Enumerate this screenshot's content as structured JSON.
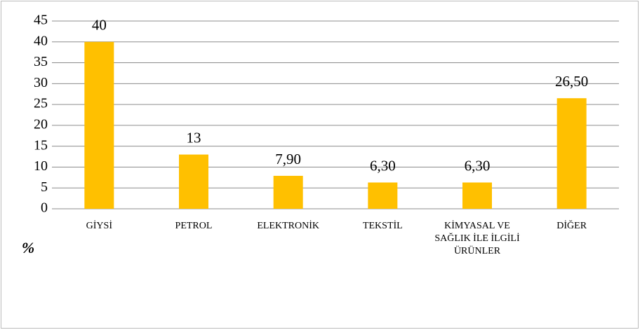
{
  "chart_data": {
    "type": "bar",
    "y_label": "%",
    "categories": [
      "GİYSİ",
      "PETROL",
      "ELEKTRONİK",
      "TEKSTİL",
      "KİMYASAL VE SAĞLIK İLE İLGİLİ ÜRÜNLER",
      "DİĞER"
    ],
    "values": [
      40,
      13,
      7.9,
      6.3,
      6.3,
      26.5
    ],
    "value_labels": [
      "40",
      "13",
      "7,90",
      "6,30",
      "6,30",
      "26,50"
    ],
    "color": "#ffc000",
    "ylim": [
      0,
      45
    ],
    "yticks": [
      0,
      5,
      10,
      15,
      20,
      25,
      30,
      35,
      40,
      45
    ],
    "grid": true
  }
}
